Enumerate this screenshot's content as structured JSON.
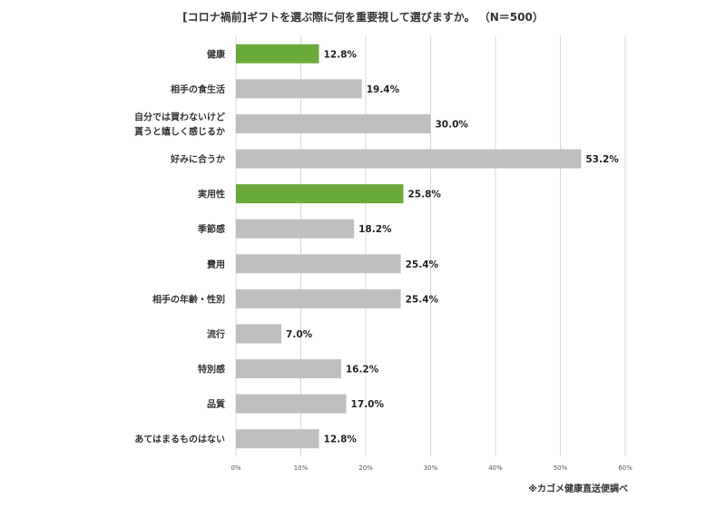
{
  "chart_data": {
    "type": "bar",
    "orientation": "horizontal",
    "title": "[コロナ禍前]ギフトを選ぶ際に何を重要視して選びますか。 （N＝500）",
    "categories": [
      "健康",
      "相手の食生活",
      "自分では買わないけど\n貰うと嬉しく感じるか",
      "好みに合うか",
      "実用性",
      "季節感",
      "費用",
      "相手の年齢・性別",
      "流行",
      "特別感",
      "品質",
      "あてはまるものはない"
    ],
    "values": [
      12.8,
      19.4,
      30.0,
      53.2,
      25.8,
      18.2,
      25.4,
      25.4,
      7.0,
      16.2,
      17.0,
      12.8
    ],
    "value_labels": [
      "12.8%",
      "19.4%",
      "30.0%",
      "53.2%",
      "25.8%",
      "18.2%",
      "25.4%",
      "25.4%",
      "7.0%",
      "16.2%",
      "17.0%",
      "12.8%"
    ],
    "highlighted": [
      true,
      false,
      false,
      false,
      true,
      false,
      false,
      false,
      false,
      false,
      false,
      false
    ],
    "xlim": [
      0,
      60
    ],
    "x_ticks": [
      0,
      10,
      20,
      30,
      40,
      50,
      60
    ],
    "x_tick_labels": [
      "0%",
      "10%",
      "20%",
      "30%",
      "40%",
      "50%",
      "60%"
    ],
    "grid": true,
    "legend": "none",
    "colors": {
      "highlight": "#6aaa3a",
      "default": "#bfbfbf",
      "grid": "#d9d9d9"
    }
  },
  "footer": {
    "source_note": "※カゴメ健康直送便調べ"
  }
}
